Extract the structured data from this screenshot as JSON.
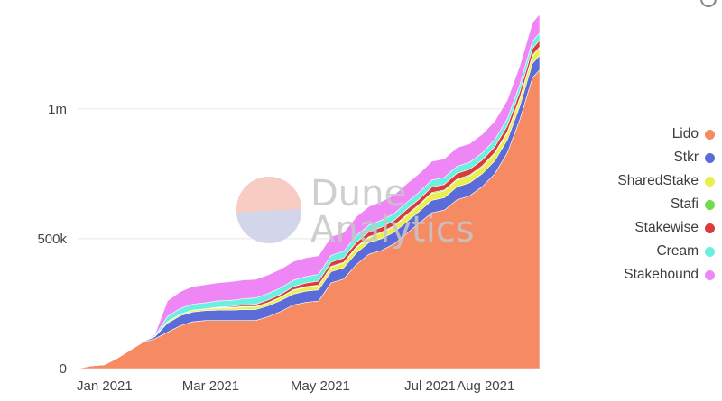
{
  "icons": {
    "watermark": "dune-analytics-logo",
    "corner": "info-icon"
  },
  "colors": {
    "Lido": "#f68a63",
    "Stkr": "#5b6bd8",
    "SharedStake": "#e9ef4f",
    "Stafi": "#6edc4f",
    "Stakewise": "#db3b3b",
    "Cream": "#6cefe0",
    "Stakehound": "#ef86f5"
  },
  "watermark": {
    "line1": "Dune",
    "line2": "Analytics"
  },
  "chart_data": {
    "type": "area",
    "stacked": true,
    "grid": "horizontal",
    "legend_position": "right",
    "ylim": [
      0,
      1350000
    ],
    "y_ticks": [
      0,
      500000,
      1000000
    ],
    "y_tick_labels": [
      "0",
      "500k",
      "1m"
    ],
    "x_tick_labels": [
      "Jan 2021",
      "Mar 2021",
      "May 2021",
      "Jul 2021",
      "Aug 2021"
    ],
    "x_tick_dates": [
      "2021-01-01",
      "2021-03-01",
      "2021-05-01",
      "2021-07-01",
      "2021-08-01"
    ],
    "x": [
      "2020-12-17",
      "2020-12-24",
      "2021-01-01",
      "2021-01-08",
      "2021-01-15",
      "2021-01-22",
      "2021-01-29",
      "2021-02-05",
      "2021-02-12",
      "2021-02-19",
      "2021-02-26",
      "2021-03-05",
      "2021-03-12",
      "2021-03-19",
      "2021-03-26",
      "2021-04-02",
      "2021-04-09",
      "2021-04-16",
      "2021-04-23",
      "2021-04-30",
      "2021-05-07",
      "2021-05-14",
      "2021-05-21",
      "2021-05-28",
      "2021-06-04",
      "2021-06-11",
      "2021-06-18",
      "2021-06-25",
      "2021-07-02",
      "2021-07-09",
      "2021-07-16",
      "2021-07-23",
      "2021-07-30",
      "2021-08-06",
      "2021-08-13",
      "2021-08-20",
      "2021-08-27",
      "2021-08-31"
    ],
    "series": [
      {
        "name": "Lido",
        "values": [
          0,
          10000,
          15000,
          40000,
          70000,
          100000,
          115000,
          140000,
          165000,
          180000,
          185000,
          185000,
          185000,
          185000,
          185000,
          200000,
          220000,
          245000,
          255000,
          260000,
          330000,
          345000,
          400000,
          440000,
          455000,
          480000,
          520000,
          560000,
          600000,
          610000,
          650000,
          665000,
          700000,
          750000,
          830000,
          960000,
          1120000,
          1150000
        ]
      },
      {
        "name": "Stkr",
        "values": [
          0,
          0,
          0,
          0,
          0,
          2000,
          8000,
          35000,
          38000,
          38000,
          38000,
          40000,
          40000,
          42000,
          42000,
          42000,
          42000,
          42000,
          43000,
          43000,
          43000,
          43000,
          45000,
          45000,
          45000,
          45000,
          45000,
          45000,
          48000,
          48000,
          50000,
          50000,
          50000,
          50000,
          50000,
          52000,
          55000,
          56000
        ]
      },
      {
        "name": "SharedStake",
        "values": [
          0,
          0,
          0,
          0,
          0,
          0,
          2000,
          5000,
          5000,
          6000,
          6000,
          8000,
          8000,
          10000,
          10000,
          10000,
          12000,
          14000,
          15000,
          16000,
          18000,
          18000,
          20000,
          20000,
          22000,
          22000,
          24000,
          24000,
          26000,
          26000,
          26000,
          26000,
          26000,
          27000,
          27000,
          27000,
          28000,
          28000
        ]
      },
      {
        "name": "Stafi",
        "values": [
          0,
          0,
          0,
          0,
          0,
          0,
          0,
          1000,
          1000,
          1000,
          1000,
          1500,
          1500,
          2000,
          2000,
          2000,
          2000,
          2500,
          2500,
          2500,
          3000,
          3000,
          3000,
          3000,
          3500,
          3500,
          3500,
          3500,
          4000,
          4000,
          4000,
          4000,
          4000,
          4000,
          4000,
          4000,
          4500,
          4500
        ]
      },
      {
        "name": "Stakewise",
        "values": [
          0,
          0,
          0,
          0,
          0,
          0,
          0,
          0,
          0,
          0,
          0,
          2000,
          4000,
          6000,
          8000,
          10000,
          10000,
          12000,
          14000,
          15000,
          16000,
          17000,
          18000,
          18000,
          19000,
          19000,
          20000,
          20000,
          21000,
          21000,
          22000,
          22000,
          23000,
          23000,
          24000,
          25000,
          25000,
          26000
        ]
      },
      {
        "name": "Cream",
        "values": [
          0,
          0,
          0,
          0,
          0,
          0,
          2000,
          20000,
          22000,
          23000,
          23000,
          24000,
          24000,
          24000,
          25000,
          25000,
          25000,
          25000,
          25000,
          26000,
          26000,
          26000,
          26000,
          26000,
          27000,
          27000,
          27000,
          27000,
          27000,
          27000,
          27000,
          27000,
          27000,
          27000,
          27000,
          27000,
          28000,
          28000
        ]
      },
      {
        "name": "Stakehound",
        "values": [
          0,
          0,
          0,
          0,
          0,
          0,
          5000,
          60000,
          65000,
          68000,
          70000,
          70000,
          72000,
          72000,
          72000,
          72000,
          72000,
          72000,
          72000,
          72000,
          72000,
          72000,
          72000,
          72000,
          72000,
          72000,
          72000,
          72000,
          72000,
          72000,
          72000,
          72000,
          72000,
          72000,
          72000,
          72000,
          72000,
          72000
        ]
      }
    ]
  }
}
